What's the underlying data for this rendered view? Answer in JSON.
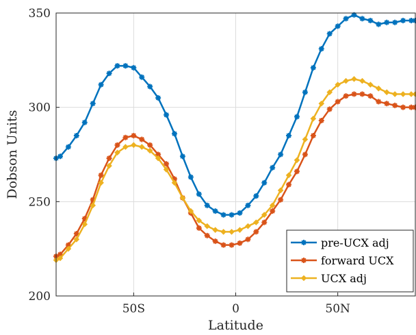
{
  "chart_data": {
    "type": "line",
    "xlabel": "Latitude",
    "ylabel": "Dobson Units",
    "xlim": [
      -88,
      88
    ],
    "ylim": [
      200,
      350
    ],
    "x_ticks": [
      {
        "value": -50,
        "label": "50S"
      },
      {
        "value": 0,
        "label": "0"
      },
      {
        "value": 50,
        "label": "50N"
      }
    ],
    "y_ticks": [
      {
        "value": 200,
        "label": "200"
      },
      {
        "value": 250,
        "label": "250"
      },
      {
        "value": 300,
        "label": "300"
      },
      {
        "value": 350,
        "label": "350"
      }
    ],
    "grid": true,
    "legend_position": "bottom-right",
    "x": [
      -88,
      -86,
      -82,
      -78,
      -74,
      -70,
      -66,
      -62,
      -58,
      -54,
      -50,
      -46,
      -42,
      -38,
      -34,
      -30,
      -26,
      -22,
      -18,
      -14,
      -10,
      -6,
      -2,
      2,
      6,
      10,
      14,
      18,
      22,
      26,
      30,
      34,
      38,
      42,
      46,
      50,
      54,
      58,
      62,
      66,
      70,
      74,
      78,
      82,
      86,
      88
    ],
    "series": [
      {
        "name": "pre-UCX adj",
        "color": "#0072BD",
        "marker": "star",
        "values": [
          273,
          274,
          279,
          285,
          292,
          302,
          312,
          318,
          322,
          322,
          321,
          316,
          311,
          305,
          296,
          286,
          274,
          263,
          254,
          248,
          245,
          243,
          243,
          244,
          248,
          253,
          260,
          268,
          275,
          285,
          295,
          308,
          321,
          331,
          339,
          343,
          347,
          349,
          347,
          346,
          344,
          345,
          345,
          346,
          346,
          346
        ]
      },
      {
        "name": "forward UCX",
        "color": "#D95319",
        "marker": "star",
        "values": [
          221,
          222,
          227,
          233,
          241,
          251,
          264,
          273,
          280,
          284,
          285,
          283,
          280,
          275,
          270,
          262,
          252,
          244,
          236,
          232,
          229,
          227,
          227,
          228,
          230,
          234,
          239,
          245,
          251,
          259,
          266,
          275,
          285,
          293,
          299,
          303,
          306,
          307,
          307,
          306,
          303,
          302,
          301,
          300,
          300,
          300
        ]
      },
      {
        "name": "UCX adj",
        "color": "#EDB120",
        "marker": "diamond",
        "values": [
          219,
          220,
          225,
          230,
          238,
          248,
          260,
          269,
          276,
          279,
          280,
          279,
          277,
          273,
          267,
          260,
          252,
          245,
          240,
          237,
          235,
          234,
          234,
          235,
          237,
          239,
          243,
          248,
          256,
          264,
          272,
          283,
          294,
          302,
          308,
          312,
          314,
          315,
          314,
          312,
          310,
          308,
          307,
          307,
          307,
          307
        ]
      }
    ]
  }
}
